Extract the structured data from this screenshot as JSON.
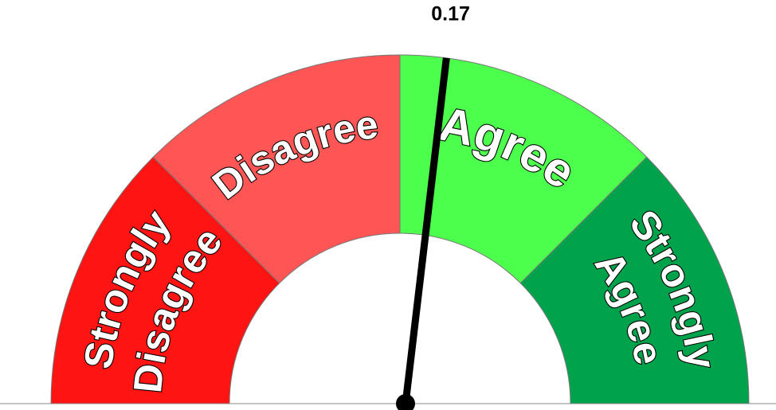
{
  "chart_data": {
    "type": "gauge",
    "value": 0.17,
    "lim": [
      -2,
      2
    ],
    "bands": [
      {
        "label": [
          "Strongly",
          "Disagree"
        ],
        "color": "#ff1414",
        "from": -2,
        "to": -1
      },
      {
        "label": [
          "Disagree"
        ],
        "color": "#ff5555",
        "from": -1,
        "to": 0
      },
      {
        "label": [
          "Agree"
        ],
        "color": "#4dff4d",
        "from": 0,
        "to": 1
      },
      {
        "label": [
          "Strongly",
          "Agree"
        ],
        "color": "#00a24b",
        "from": 1,
        "to": 2
      }
    ]
  }
}
